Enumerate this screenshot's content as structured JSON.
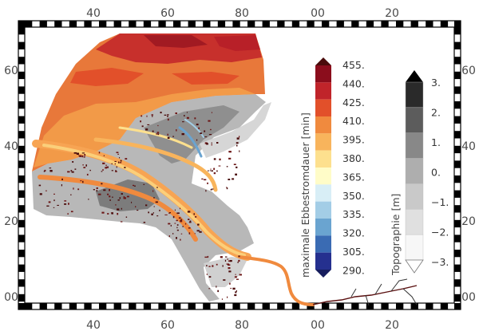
{
  "map": {
    "top_ticks": [
      "40",
      "60",
      "80",
      "00",
      "20"
    ],
    "bottom_ticks": [
      "40",
      "60",
      "80",
      "00",
      "20"
    ],
    "left_ticks": [
      "60",
      "40",
      "20",
      "00"
    ],
    "right_ticks": [
      "60",
      "40",
      "20",
      "00"
    ],
    "tick_prefix_small": "''"
  },
  "ebbe_colorbar": {
    "title": "maximale Ebbestromdauer [min]",
    "labels": [
      "455.",
      "440.",
      "425.",
      "410.",
      "395.",
      "380.",
      "365.",
      "350.",
      "335.",
      "320.",
      "305.",
      "290."
    ],
    "colors": [
      "#8b0d1c",
      "#c0242a",
      "#e2502a",
      "#f08a3e",
      "#f8b45c",
      "#fde08e",
      "#fffcc8",
      "#d8eef6",
      "#a3cde6",
      "#6aa4d0",
      "#3a6bb3",
      "#25308f"
    ],
    "tip_top_color": "#4a0b0b",
    "tip_bottom_color": "#171d5e"
  },
  "topo_colorbar": {
    "title": "Topographie [m]",
    "labels": [
      "3.",
      "2.",
      "1.",
      "0.",
      "−1.",
      "−2.",
      "−3."
    ],
    "colors": [
      "#2a2a2a",
      "#5c5c5c",
      "#888888",
      "#aeaeae",
      "#c9c9c9",
      "#e0e0e0",
      "#f7f7f7"
    ],
    "tip_top_color": "#000000",
    "tip_bottom_color": "#ffffff"
  }
}
